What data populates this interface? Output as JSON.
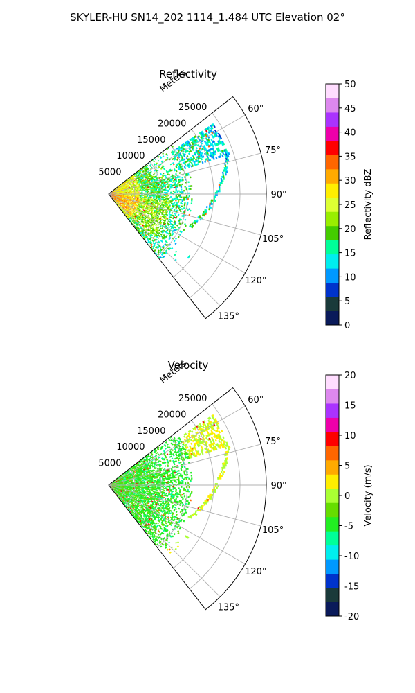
{
  "title": "SKYLER-HU  SN14_202  1114_1.484 UTC Elevation 02°",
  "chart_data": [
    {
      "type": "heatmap",
      "projection": "polar-sector",
      "title": "Reflectivity",
      "radial_label": "Meters",
      "radial_ticks": [
        "5000",
        "10000",
        "15000",
        "20000",
        "25000"
      ],
      "radial_values": [
        5000,
        10000,
        15000,
        20000,
        25000
      ],
      "r_max": 30000,
      "theta_ticks": [
        "60°",
        "75°",
        "90°",
        "105°",
        "120°",
        "135°"
      ],
      "theta_values": [
        60,
        75,
        90,
        105,
        120,
        135
      ],
      "theta_range": [
        52,
        142
      ],
      "grid": true,
      "colorbar": {
        "label": "Reflectivity dBZ",
        "ticks": [
          "0",
          "5",
          "10",
          "15",
          "20",
          "25",
          "30",
          "35",
          "40",
          "45",
          "50"
        ],
        "range": [
          0,
          50
        ],
        "colors": [
          "#0a1a5a",
          "#1a3a3a",
          "#0033cc",
          "#0099ff",
          "#00eeee",
          "#00ff99",
          "#44cc00",
          "#99ee00",
          "#ddff33",
          "#ffee00",
          "#ffaa00",
          "#ff6600",
          "#ff0000",
          "#ee00aa",
          "#aa33ff",
          "#dd88ee",
          "#ffddff"
        ]
      }
    },
    {
      "type": "heatmap",
      "projection": "polar-sector",
      "title": "Velocity",
      "radial_label": "Meters",
      "radial_ticks": [
        "5000",
        "10000",
        "15000",
        "20000",
        "25000"
      ],
      "radial_values": [
        5000,
        10000,
        15000,
        20000,
        25000
      ],
      "r_max": 30000,
      "theta_ticks": [
        "60°",
        "75°",
        "90°",
        "105°",
        "120°",
        "135°"
      ],
      "theta_values": [
        60,
        75,
        90,
        105,
        120,
        135
      ],
      "theta_range": [
        52,
        142
      ],
      "grid": true,
      "colorbar": {
        "label": "Velocity (m/s)",
        "ticks": [
          "-20",
          "-15",
          "-10",
          "-5",
          "0",
          "5",
          "10",
          "15",
          "20"
        ],
        "range": [
          -20,
          20
        ],
        "colors": [
          "#0a1a5a",
          "#1a3a3a",
          "#0033cc",
          "#0099ff",
          "#00eeee",
          "#00ff99",
          "#22ee22",
          "#66dd00",
          "#aaff33",
          "#ffee00",
          "#ffaa00",
          "#ff6600",
          "#ff0000",
          "#ee00aa",
          "#aa33ff",
          "#dd88ee",
          "#ffddff"
        ]
      }
    }
  ]
}
